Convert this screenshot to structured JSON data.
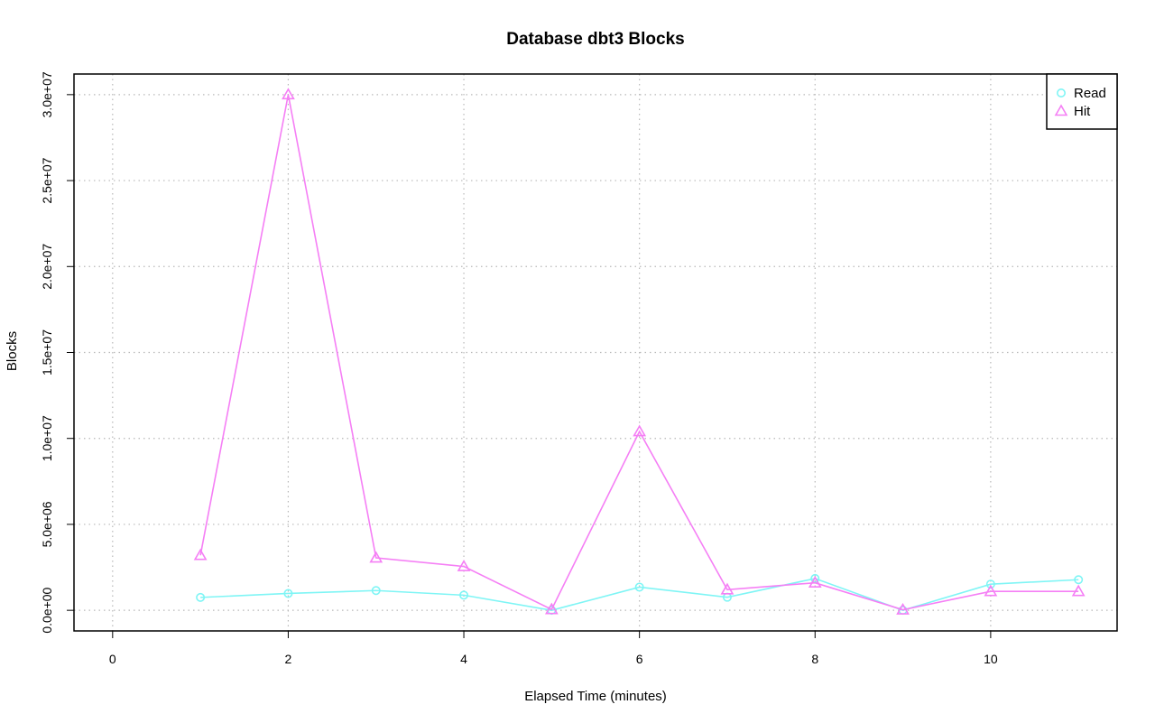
{
  "chart_data": {
    "type": "line",
    "title": "Database dbt3 Blocks",
    "xlabel": "Elapsed Time (minutes)",
    "ylabel": "Blocks",
    "x_ticks": [
      "0",
      "2",
      "4",
      "6",
      "8",
      "10"
    ],
    "y_ticks": [
      "0.0e+00",
      "5.0e+06",
      "1.0e+07",
      "1.5e+07",
      "2.0e+07",
      "2.5e+07",
      "3.0e+07"
    ],
    "xlim": [
      -0.44,
      11.44
    ],
    "ylim": [
      -1200000,
      31200000
    ],
    "x_tick_values": [
      0,
      2,
      4,
      6,
      8,
      10
    ],
    "y_tick_values": [
      0,
      5000000,
      10000000,
      15000000,
      20000000,
      25000000,
      30000000
    ],
    "grid": true,
    "legend_position": "top-right",
    "x": [
      1,
      2,
      3,
      4,
      5,
      6,
      7,
      8,
      9,
      10,
      11
    ],
    "series": [
      {
        "name": "Read",
        "color": "#7ff5f5",
        "marker": "circle",
        "values": [
          750000,
          980000,
          1150000,
          880000,
          0,
          1350000,
          760000,
          1850000,
          0,
          1520000,
          1780000
        ]
      },
      {
        "name": "Hit",
        "color": "#f57ff5",
        "marker": "triangle",
        "values": [
          3200000,
          30000000,
          3050000,
          2550000,
          50000,
          10400000,
          1200000,
          1600000,
          30000,
          1100000,
          1100000
        ]
      }
    ]
  }
}
